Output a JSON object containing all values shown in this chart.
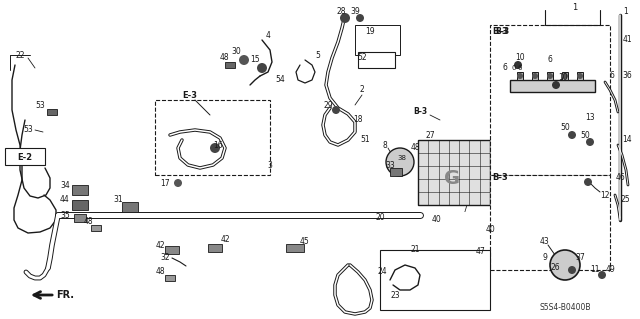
{
  "background_color": "#ffffff",
  "line_color": "#1a1a1a",
  "fig_width": 6.4,
  "fig_height": 3.19,
  "dpi": 100,
  "diagram_code": "S5S4-B0400B"
}
